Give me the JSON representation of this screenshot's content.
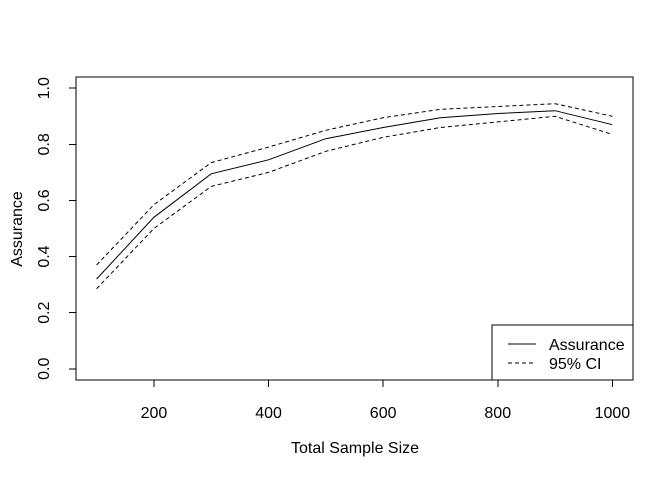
{
  "figure": {
    "background": "#ffffff"
  },
  "chart_data": {
    "type": "line",
    "title": "",
    "xlabel": "Total Sample Size",
    "ylabel": "Assurance",
    "x": [
      100,
      200,
      300,
      400,
      500,
      600,
      700,
      800,
      900,
      1000
    ],
    "series": [
      {
        "name": "Assurance",
        "style": "solid",
        "values": [
          0.32,
          0.54,
          0.695,
          0.745,
          0.82,
          0.86,
          0.895,
          0.91,
          0.92,
          0.87
        ]
      },
      {
        "name": "95% CI upper",
        "style": "dashed",
        "values": [
          0.37,
          0.585,
          0.735,
          0.79,
          0.85,
          0.895,
          0.925,
          0.935,
          0.945,
          0.9
        ]
      },
      {
        "name": "95% CI lower",
        "style": "dashed",
        "values": [
          0.285,
          0.5,
          0.65,
          0.7,
          0.775,
          0.825,
          0.86,
          0.88,
          0.9,
          0.835
        ]
      }
    ],
    "xticks": [
      "200",
      "400",
      "600",
      "800",
      "1000"
    ],
    "xtick_values": [
      200,
      400,
      600,
      800,
      1000
    ],
    "yticks": [
      "0.0",
      "0.2",
      "0.4",
      "0.6",
      "0.8",
      "1.0"
    ],
    "ytick_values": [
      0.0,
      0.2,
      0.4,
      0.6,
      0.8,
      1.0
    ],
    "xlim": [
      100,
      1000
    ],
    "ylim": [
      0.0,
      1.0
    ],
    "range_pad": 0.04,
    "grid": false,
    "colors": {
      "line": "#000000",
      "background": "#ffffff"
    },
    "legend": {
      "position": "bottom-right",
      "entries": [
        {
          "label": "Assurance",
          "style": "solid"
        },
        {
          "label": "95% CI",
          "style": "dashed"
        }
      ]
    }
  }
}
